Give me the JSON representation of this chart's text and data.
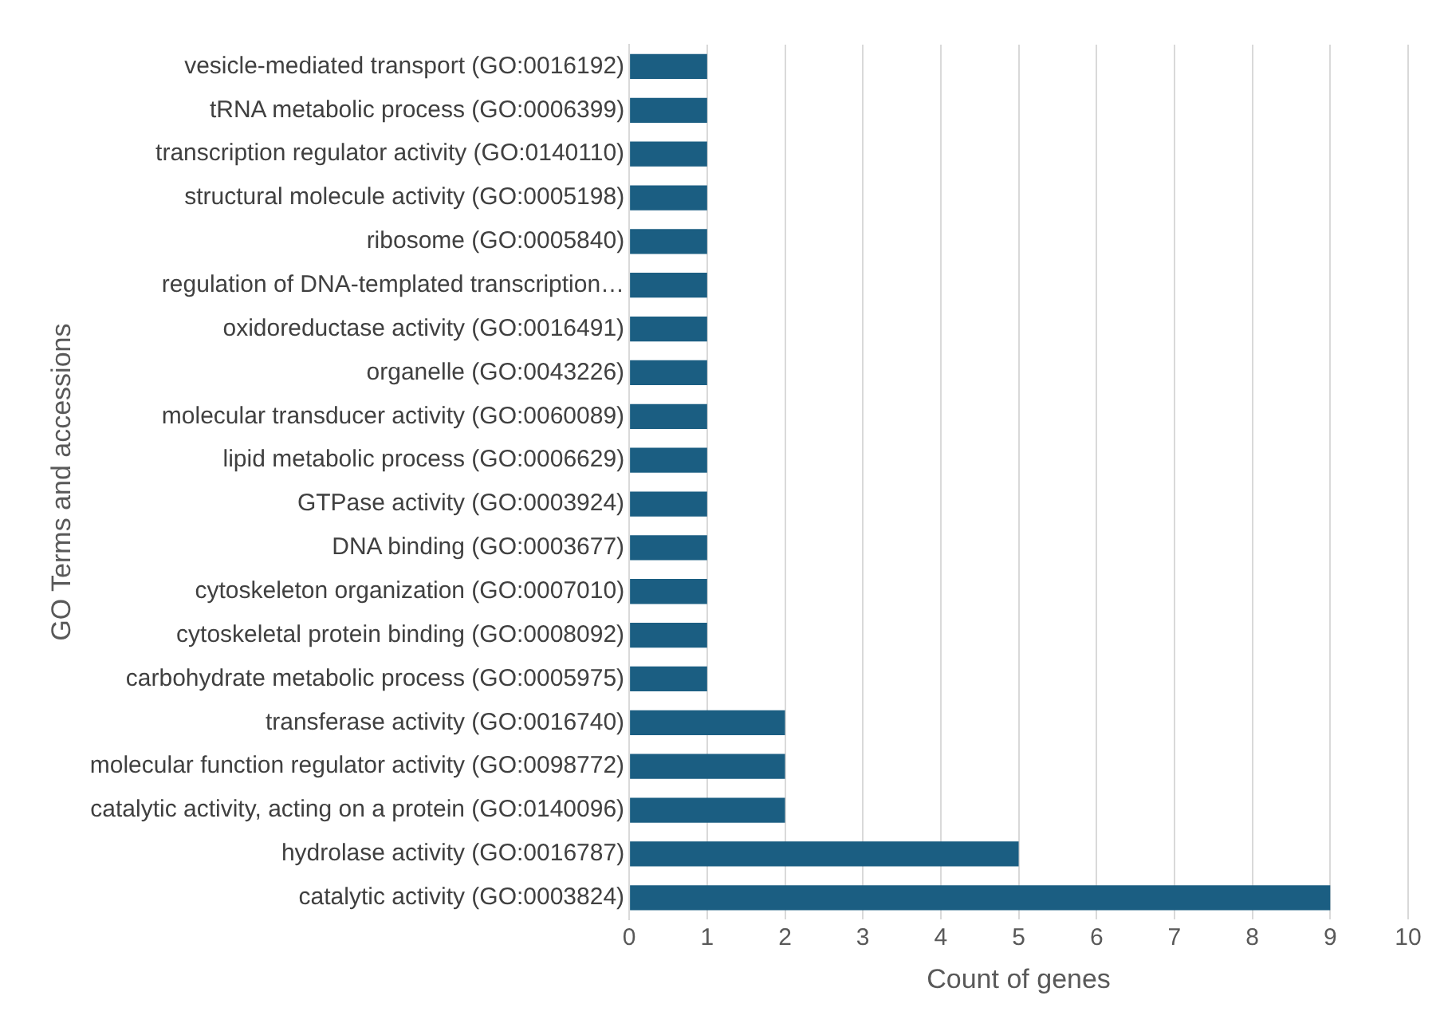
{
  "chart_data": {
    "type": "bar",
    "orientation": "horizontal",
    "categories": [
      "vesicle-mediated transport (GO:0016192)",
      "tRNA metabolic process (GO:0006399)",
      "transcription regulator activity (GO:0140110)",
      "structural molecule activity (GO:0005198)",
      "ribosome (GO:0005840)",
      "regulation of DNA-templated transcription…",
      "oxidoreductase activity (GO:0016491)",
      "organelle (GO:0043226)",
      "molecular transducer activity (GO:0060089)",
      "lipid metabolic process (GO:0006629)",
      "GTPase activity (GO:0003924)",
      "DNA binding (GO:0003677)",
      "cytoskeleton organization (GO:0007010)",
      "cytoskeletal protein binding (GO:0008092)",
      "carbohydrate metabolic process (GO:0005975)",
      "transferase activity (GO:0016740)",
      "molecular function regulator activity (GO:0098772)",
      "catalytic activity, acting on a protein (GO:0140096)",
      "hydrolase activity (GO:0016787)",
      "catalytic activity (GO:0003824)"
    ],
    "values": [
      1,
      1,
      1,
      1,
      1,
      1,
      1,
      1,
      1,
      1,
      1,
      1,
      1,
      1,
      1,
      2,
      2,
      2,
      5,
      9
    ],
    "color": "#1b5e82",
    "xlim": [
      0,
      10
    ],
    "xticks": [
      0,
      1,
      2,
      3,
      4,
      5,
      6,
      7,
      8,
      9,
      10
    ],
    "grid": "x",
    "xlabel": "Count of genes",
    "ylabel": "GO Terms and accessions"
  }
}
